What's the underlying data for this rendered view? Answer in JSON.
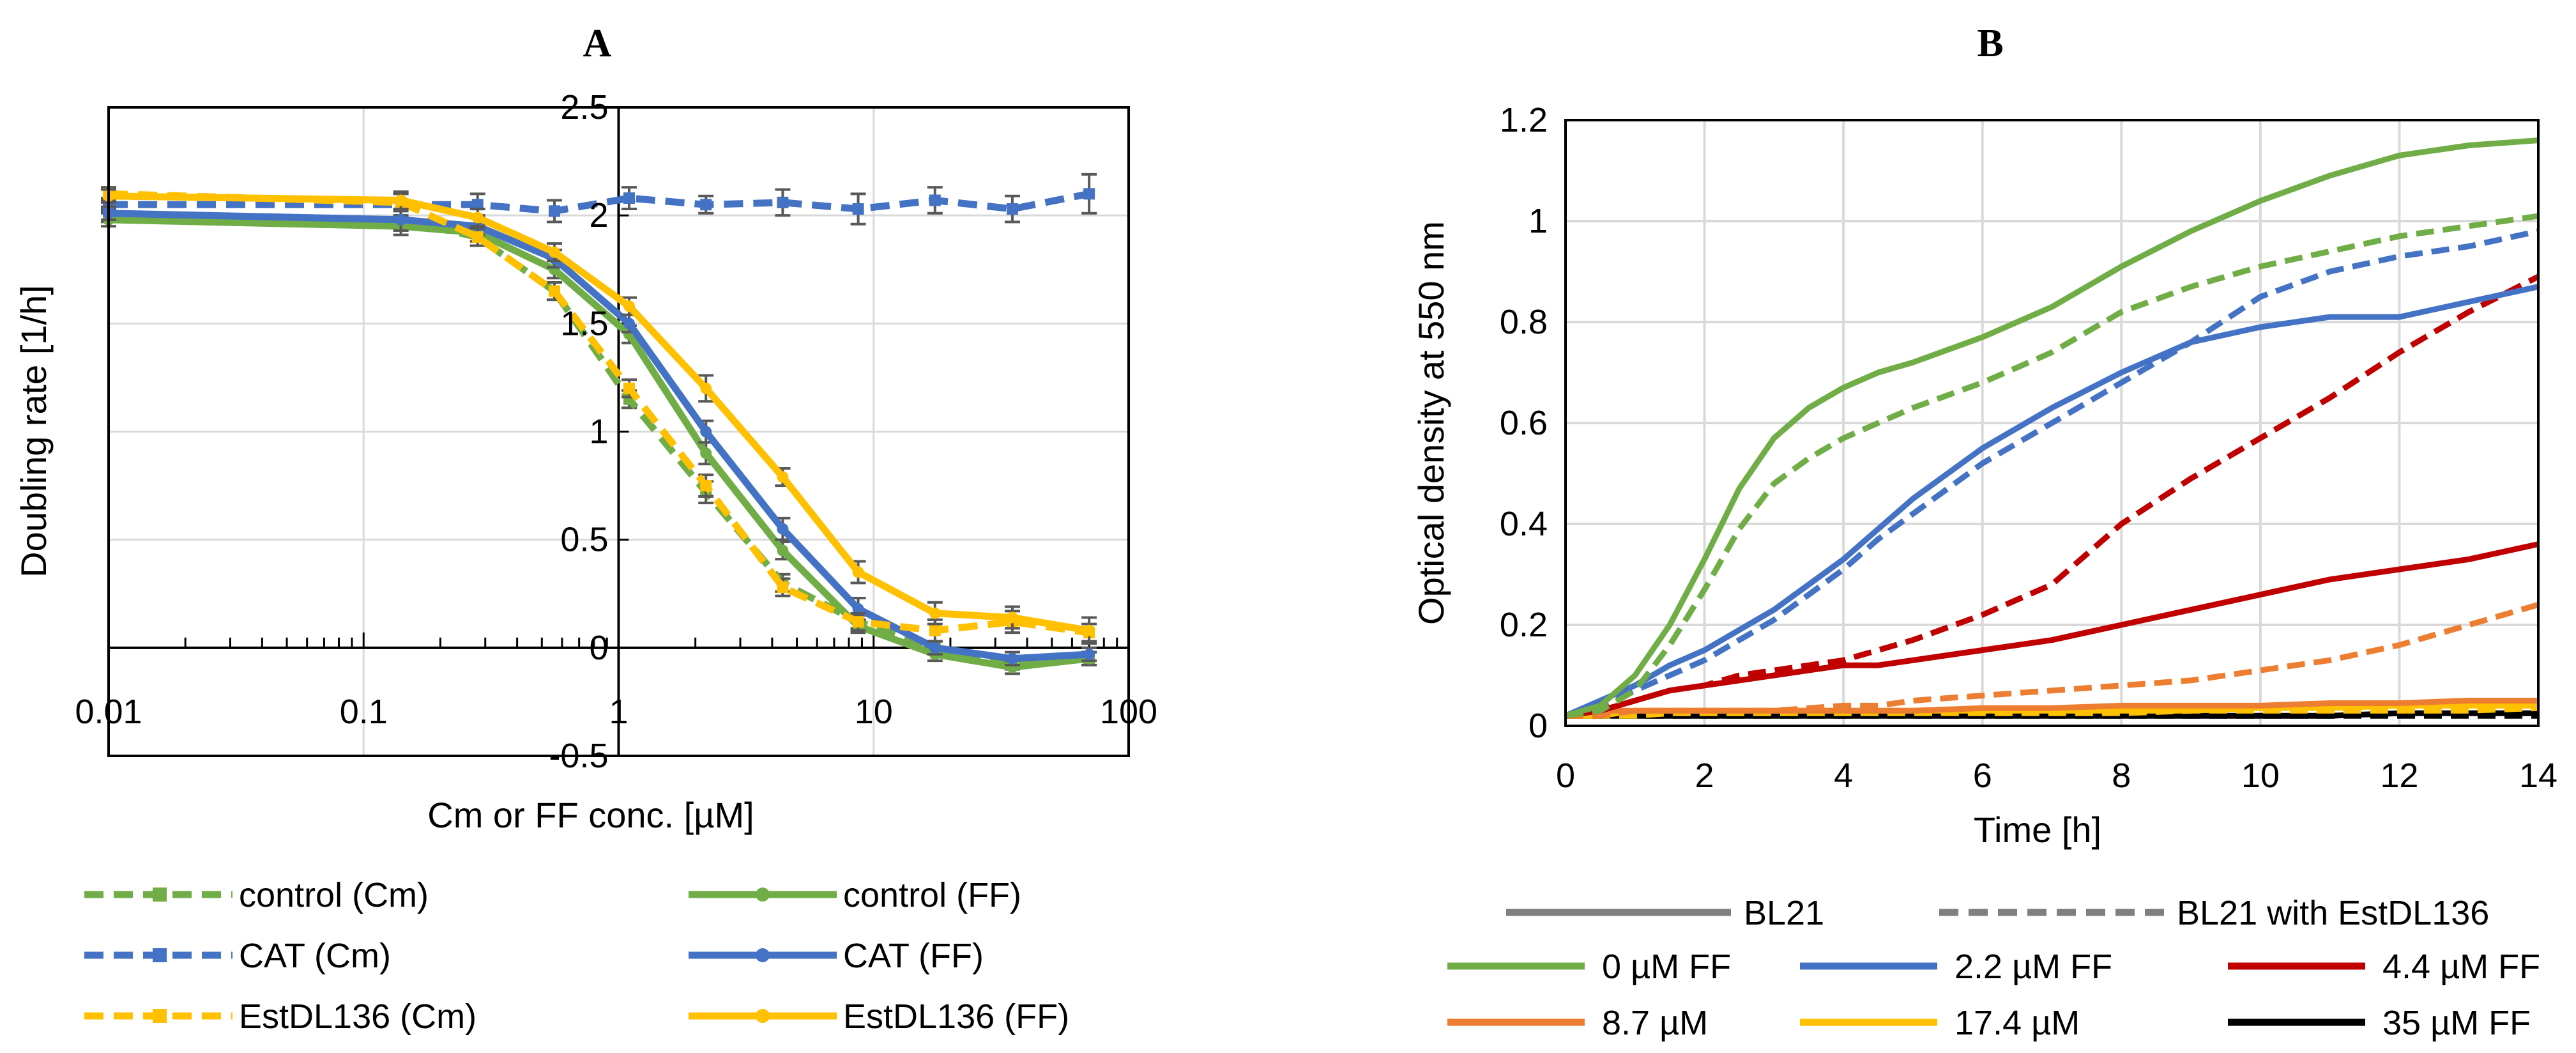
{
  "chart_data": [
    {
      "panel": "A",
      "type": "line",
      "title": "A",
      "xlabel": "Cm or FF conc. [µM]",
      "ylabel": "Doubling rate [1/h]",
      "x_scale": "log",
      "xlim": [
        0.01,
        100
      ],
      "ylim": [
        -0.5,
        2.5
      ],
      "x_ticks": [
        "0.01",
        "0.1",
        "1",
        "10",
        "100"
      ],
      "y_ticks": [
        "-0.5",
        "0",
        "0.5",
        "1",
        "1.5",
        "2",
        "2.5"
      ],
      "grid": true,
      "legend_position": "bottom",
      "colors": {
        "control": "#70ad47",
        "cat": "#4472c4",
        "est": "#ffc000",
        "errorbar": "#595959"
      },
      "x": [
        0.01,
        0.14,
        0.28,
        0.56,
        1.1,
        2.2,
        4.4,
        8.7,
        17.4,
        35,
        70
      ],
      "series": [
        {
          "name": "control (Cm)",
          "style": "dashed",
          "marker": "square",
          "color": "#70ad47",
          "values": [
            2.0,
            1.98,
            1.9,
            1.65,
            1.15,
            0.72,
            0.3,
            0.12,
            0.0,
            -0.07,
            -0.05
          ],
          "errors": [
            0.03,
            0.05,
            0.04,
            0.04,
            0.04,
            0.05,
            0.04,
            0.03,
            0.03,
            0.03,
            0.03
          ]
        },
        {
          "name": "control (FF)",
          "style": "solid",
          "marker": "circle",
          "color": "#70ad47",
          "values": [
            1.98,
            1.95,
            1.92,
            1.75,
            1.45,
            0.9,
            0.45,
            0.1,
            -0.03,
            -0.09,
            -0.05
          ],
          "errors": [
            0.03,
            0.04,
            0.04,
            0.04,
            0.04,
            0.05,
            0.04,
            0.03,
            0.03,
            0.03,
            0.03
          ]
        },
        {
          "name": "CAT (Cm)",
          "style": "dashed",
          "marker": "square",
          "color": "#4472c4",
          "values": [
            2.05,
            2.05,
            2.05,
            2.02,
            2.08,
            2.05,
            2.06,
            2.03,
            2.07,
            2.03,
            2.1
          ],
          "errors": [
            0.03,
            0.05,
            0.05,
            0.05,
            0.05,
            0.04,
            0.06,
            0.07,
            0.06,
            0.06,
            0.09
          ]
        },
        {
          "name": "CAT  (FF)",
          "style": "solid",
          "marker": "circle",
          "color": "#4472c4",
          "values": [
            2.01,
            1.98,
            1.95,
            1.8,
            1.5,
            1.0,
            0.55,
            0.18,
            0.0,
            -0.05,
            -0.03
          ],
          "errors": [
            0.03,
            0.05,
            0.04,
            0.04,
            0.04,
            0.05,
            0.05,
            0.05,
            0.03,
            0.03,
            0.03
          ]
        },
        {
          "name": "EstDL136 (Cm)",
          "style": "dashed",
          "marker": "square",
          "color": "#ffc000",
          "values": [
            2.1,
            2.06,
            1.9,
            1.65,
            1.2,
            0.75,
            0.28,
            0.12,
            0.08,
            0.12,
            0.07
          ],
          "errors": [
            0.03,
            0.04,
            0.04,
            0.04,
            0.04,
            0.05,
            0.04,
            0.04,
            0.05,
            0.05,
            0.04
          ]
        },
        {
          "name": "EstDL136 (FF)",
          "style": "solid",
          "marker": "circle",
          "color": "#ffc000",
          "values": [
            2.09,
            2.07,
            1.99,
            1.83,
            1.58,
            1.2,
            0.79,
            0.35,
            0.16,
            0.14,
            0.08
          ],
          "errors": [
            0.03,
            0.04,
            0.04,
            0.04,
            0.04,
            0.06,
            0.04,
            0.05,
            0.05,
            0.05,
            0.06
          ]
        }
      ]
    },
    {
      "panel": "B",
      "type": "line",
      "title": "B",
      "xlabel": "Time [h]",
      "ylabel": "Optical density at 550 nm",
      "xlim": [
        0,
        14
      ],
      "ylim": [
        0,
        1.2
      ],
      "x_ticks": [
        "0",
        "2",
        "4",
        "6",
        "8",
        "10",
        "12",
        "14"
      ],
      "y_ticks": [
        "0",
        "0.2",
        "0.4",
        "0.6",
        "0.8",
        "1",
        "1.2"
      ],
      "grid": true,
      "legend_position": "bottom",
      "colors": {
        "ff0": "#70ad47",
        "ff2": "#4472c4",
        "ff4": "#c00000",
        "ff8": "#ed7d31",
        "ff17": "#ffc000",
        "ff35": "#000000",
        "bl21": "#7f7f7f"
      },
      "legend_style_entries": [
        {
          "label": "BL21",
          "style": "solid",
          "color": "#7f7f7f"
        },
        {
          "label": "BL21 with EstDL136",
          "style": "dashed",
          "color": "#7f7f7f"
        }
      ],
      "legend_entries": [
        {
          "label": "0 µM FF",
          "color": "#70ad47"
        },
        {
          "label": "2.2 µM FF",
          "color": "#4472c4"
        },
        {
          "label": "4.4 µM FF",
          "color": "#c00000"
        },
        {
          "label": "8.7 µM",
          "color": "#ed7d31"
        },
        {
          "label": "17.4 µM",
          "color": "#ffc000"
        },
        {
          "label": "35 µM FF",
          "color": "#000000"
        }
      ],
      "x": [
        0,
        0.5,
        1,
        1.5,
        2,
        2.5,
        3,
        3.5,
        4,
        4.5,
        5,
        6,
        7,
        8,
        9,
        10,
        11,
        12,
        13,
        14
      ],
      "series": [
        {
          "color": "#70ad47",
          "style": "solid",
          "values": [
            0.02,
            0.04,
            0.1,
            0.2,
            0.33,
            0.47,
            0.57,
            0.63,
            0.67,
            0.7,
            0.72,
            0.77,
            0.83,
            0.91,
            0.98,
            1.04,
            1.09,
            1.13,
            1.15,
            1.16
          ]
        },
        {
          "color": "#70ad47",
          "style": "dashed",
          "values": [
            0.02,
            0.03,
            0.07,
            0.16,
            0.27,
            0.39,
            0.48,
            0.53,
            0.57,
            0.6,
            0.63,
            0.68,
            0.74,
            0.82,
            0.87,
            0.91,
            0.94,
            0.97,
            0.99,
            1.01
          ]
        },
        {
          "color": "#4472c4",
          "style": "solid",
          "values": [
            0.02,
            0.05,
            0.08,
            0.12,
            0.15,
            0.19,
            0.23,
            0.28,
            0.33,
            0.39,
            0.45,
            0.55,
            0.63,
            0.7,
            0.76,
            0.79,
            0.81,
            0.81,
            0.84,
            0.87
          ]
        },
        {
          "color": "#4472c4",
          "style": "dashed",
          "values": [
            0.02,
            0.04,
            0.07,
            0.1,
            0.13,
            0.17,
            0.21,
            0.26,
            0.31,
            0.37,
            0.42,
            0.52,
            0.6,
            0.68,
            0.76,
            0.85,
            0.9,
            0.93,
            0.95,
            0.98
          ]
        },
        {
          "color": "#c00000",
          "style": "solid",
          "values": [
            0.02,
            0.03,
            0.05,
            0.07,
            0.08,
            0.09,
            0.1,
            0.11,
            0.12,
            0.12,
            0.13,
            0.15,
            0.17,
            0.2,
            0.23,
            0.26,
            0.29,
            0.31,
            0.33,
            0.36
          ]
        },
        {
          "color": "#c00000",
          "style": "dashed",
          "values": [
            0.02,
            0.03,
            0.05,
            0.07,
            0.08,
            0.1,
            0.11,
            0.12,
            0.13,
            0.15,
            0.17,
            0.22,
            0.28,
            0.4,
            0.49,
            0.57,
            0.65,
            0.74,
            0.82,
            0.89
          ]
        },
        {
          "color": "#ed7d31",
          "style": "solid",
          "values": [
            0.02,
            0.03,
            0.03,
            0.03,
            0.03,
            0.03,
            0.03,
            0.03,
            0.03,
            0.03,
            0.03,
            0.035,
            0.035,
            0.04,
            0.04,
            0.04,
            0.045,
            0.045,
            0.05,
            0.05
          ]
        },
        {
          "color": "#ed7d31",
          "style": "dashed",
          "values": [
            0.02,
            0.02,
            0.03,
            0.03,
            0.03,
            0.03,
            0.03,
            0.035,
            0.04,
            0.04,
            0.05,
            0.06,
            0.07,
            0.08,
            0.09,
            0.11,
            0.13,
            0.16,
            0.2,
            0.24
          ]
        },
        {
          "color": "#ffc000",
          "style": "solid",
          "values": [
            0.02,
            0.02,
            0.03,
            0.03,
            0.03,
            0.03,
            0.03,
            0.03,
            0.03,
            0.03,
            0.03,
            0.03,
            0.03,
            0.03,
            0.03,
            0.035,
            0.035,
            0.04,
            0.04,
            0.04
          ]
        },
        {
          "color": "#ffc000",
          "style": "dashed",
          "values": [
            0.02,
            0.02,
            0.02,
            0.025,
            0.025,
            0.025,
            0.025,
            0.025,
            0.025,
            0.025,
            0.025,
            0.025,
            0.025,
            0.025,
            0.03,
            0.03,
            0.03,
            0.03,
            0.03,
            0.035
          ]
        },
        {
          "color": "#000000",
          "style": "solid",
          "values": [
            0.02,
            0.02,
            0.02,
            0.02,
            0.02,
            0.02,
            0.02,
            0.02,
            0.02,
            0.02,
            0.02,
            0.02,
            0.02,
            0.02,
            0.02,
            0.02,
            0.02,
            0.025,
            0.025,
            0.025
          ]
        },
        {
          "color": "#000000",
          "style": "dashed",
          "values": [
            0.02,
            0.02,
            0.02,
            0.02,
            0.02,
            0.02,
            0.02,
            0.02,
            0.02,
            0.02,
            0.02,
            0.02,
            0.02,
            0.02,
            0.02,
            0.02,
            0.02,
            0.02,
            0.02,
            0.02
          ]
        }
      ]
    }
  ]
}
